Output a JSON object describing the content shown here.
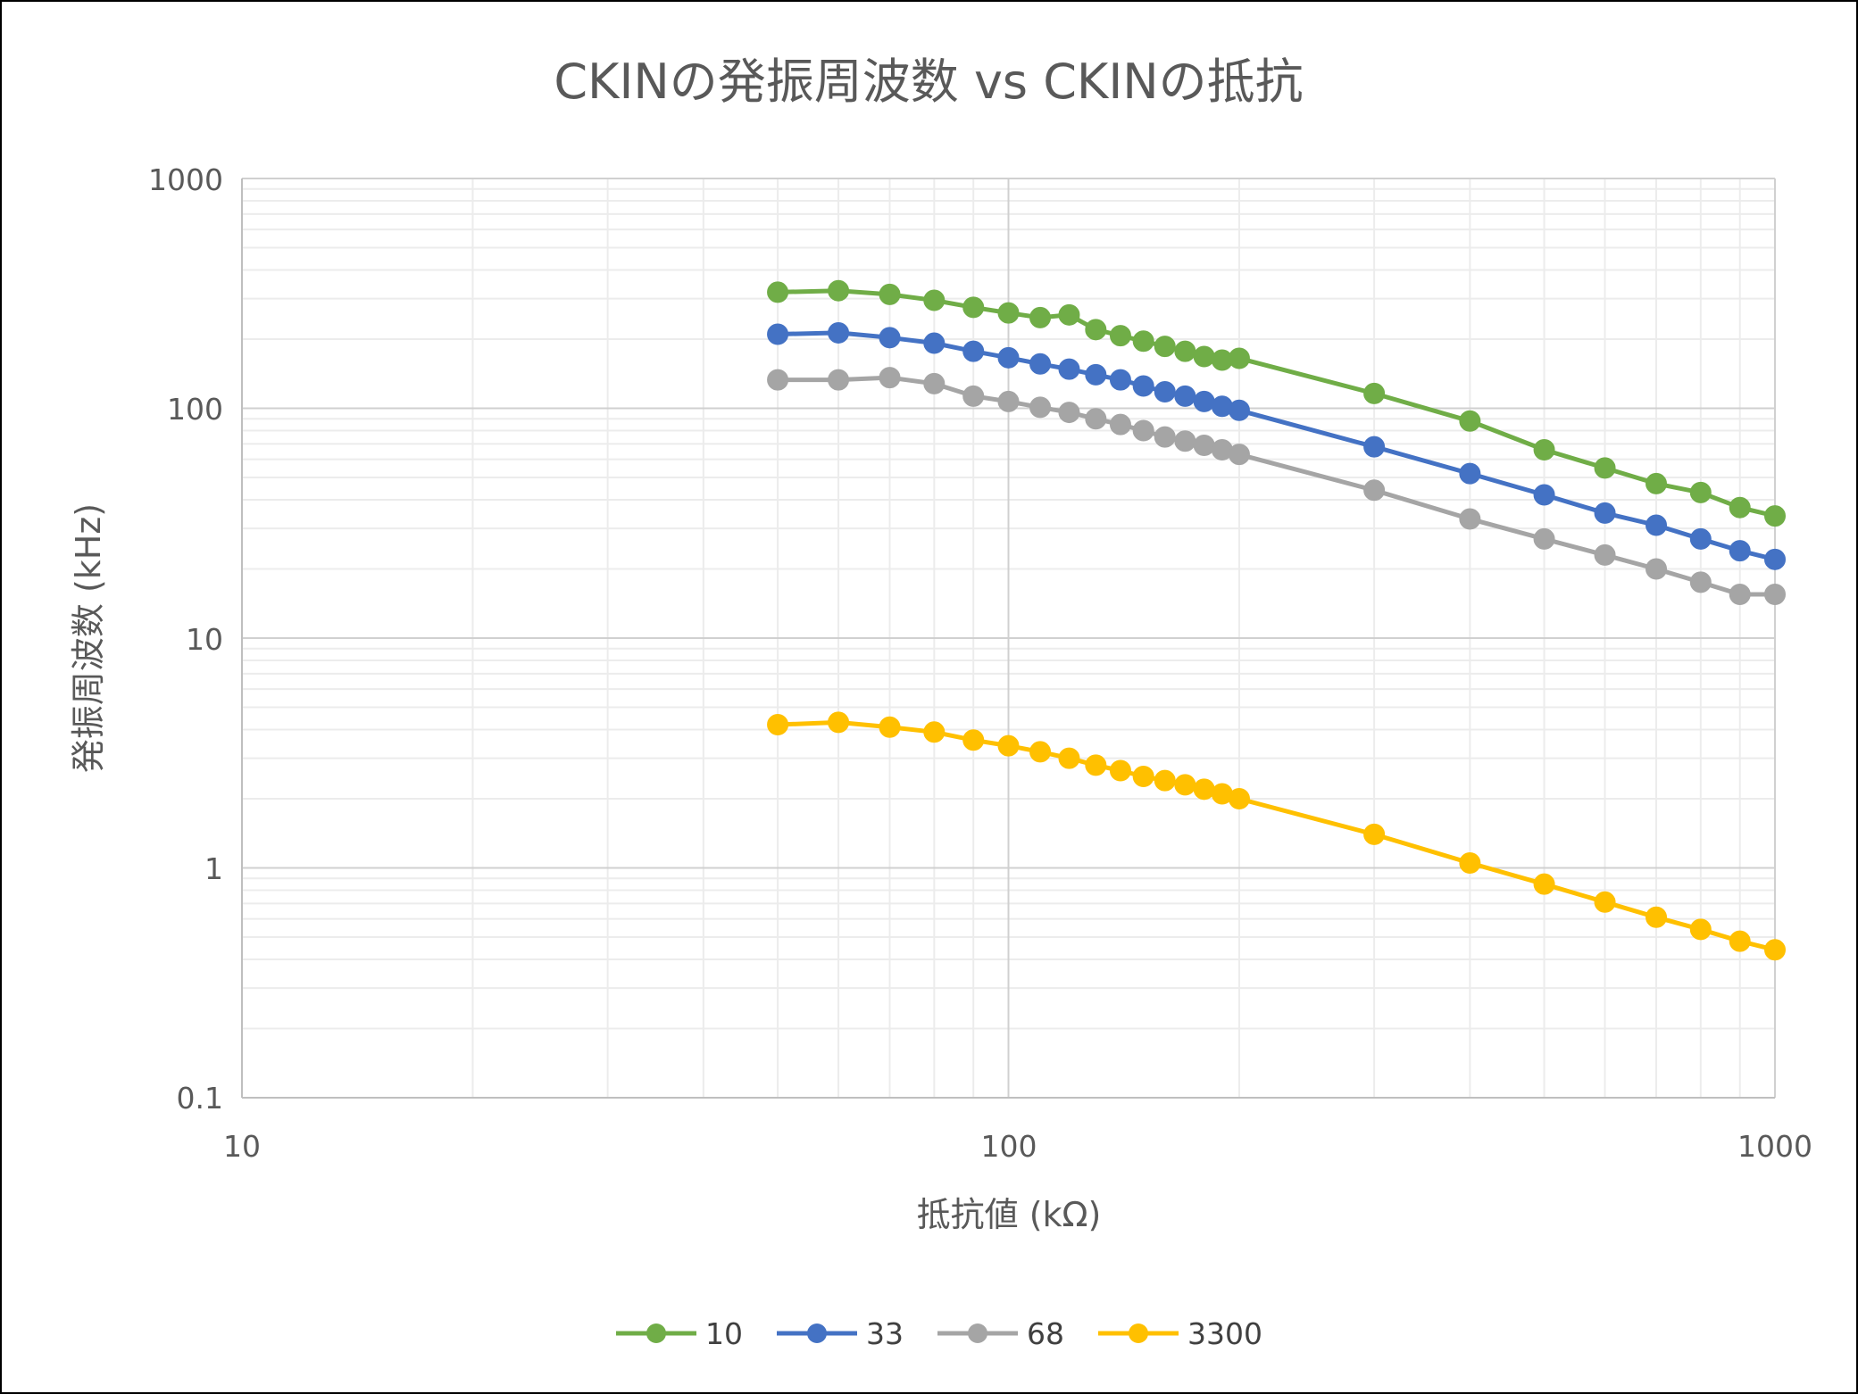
{
  "chart_data": {
    "type": "line",
    "title": "CKINの発振周波数 vs CKINの抵抗",
    "xlabel": "抵抗値 (kΩ)",
    "ylabel": "発振周波数 (kHz)",
    "xscale": "log",
    "yscale": "log",
    "xlim": [
      10,
      1000
    ],
    "ylim": [
      0.1,
      1000
    ],
    "x_ticks": [
      "10",
      "100",
      "1000"
    ],
    "y_ticks": [
      "0.1",
      "1",
      "10",
      "100",
      "1000"
    ],
    "grid": true,
    "legend_position": "bottom",
    "x": [
      50,
      60,
      70,
      80,
      90,
      100,
      110,
      120,
      130,
      140,
      150,
      160,
      170,
      180,
      190,
      200,
      300,
      400,
      500,
      600,
      700,
      800,
      900,
      1000
    ],
    "series": [
      {
        "name": "10",
        "color": "#70AD47",
        "values": [
          320,
          325,
          313,
          295,
          275,
          260,
          248,
          255,
          220,
          207,
          196,
          186,
          177,
          168,
          162,
          165,
          116,
          88,
          66,
          55,
          47,
          43,
          37,
          34
        ]
      },
      {
        "name": "33",
        "color": "#4472C4",
        "values": [
          210,
          213,
          203,
          192,
          177,
          166,
          156,
          148,
          140,
          133,
          125,
          118,
          113,
          107,
          102,
          98,
          68,
          52,
          42,
          35,
          31,
          27,
          24,
          22
        ]
      },
      {
        "name": "68",
        "color": "#A5A5A5",
        "values": [
          133,
          133,
          136,
          128,
          113,
          107,
          101,
          96,
          90,
          85,
          80,
          75,
          72,
          69,
          66,
          63,
          44,
          33,
          27,
          23,
          20,
          17.5,
          15.5,
          15.5
        ]
      },
      {
        "name": "3300",
        "color": "#FFC000",
        "values": [
          4.2,
          4.3,
          4.1,
          3.9,
          3.6,
          3.4,
          3.2,
          3.0,
          2.8,
          2.65,
          2.5,
          2.4,
          2.3,
          2.2,
          2.1,
          2.0,
          1.4,
          1.05,
          0.85,
          0.71,
          0.61,
          0.54,
          0.48,
          0.44
        ]
      }
    ]
  }
}
